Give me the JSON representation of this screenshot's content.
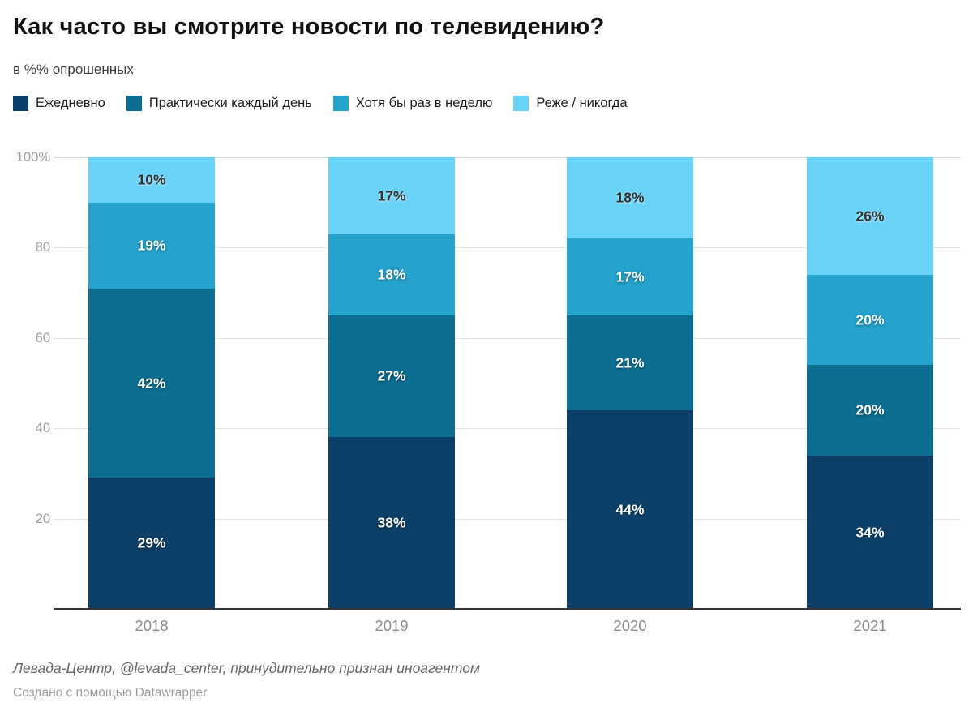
{
  "header": {
    "title": "Как часто вы смотрите новости по телевидению?",
    "subtitle": "в %% опрошенных"
  },
  "footer": {
    "source": "Левада-Центр, @levada_center, принудительно признан иноагентом",
    "attribution": "Создано с помощью Datawrapper"
  },
  "chart_data": {
    "type": "bar",
    "stacked": true,
    "orientation": "vertical",
    "title": "Как часто вы смотрите новости по телевидению?",
    "subtitle": "в %% опрошенных",
    "categories": [
      "2018",
      "2019",
      "2020",
      "2021"
    ],
    "series": [
      {
        "name": "Ежедневно",
        "color": "#0d4068",
        "label_color": "light",
        "values": [
          29,
          38,
          44,
          34
        ]
      },
      {
        "name": "Практически каждый день",
        "color": "#0c6e91",
        "label_color": "light",
        "values": [
          42,
          27,
          21,
          20
        ]
      },
      {
        "name": "Хотя бы раз в неделю",
        "color": "#25a3cd",
        "label_color": "light",
        "values": [
          19,
          18,
          17,
          20
        ]
      },
      {
        "name": "Реже / никогда",
        "color": "#69d2f7",
        "label_color": "dark",
        "values": [
          10,
          17,
          18,
          26
        ]
      }
    ],
    "value_suffix": "%",
    "ylim": [
      0,
      100
    ],
    "yticks": [
      {
        "value": 20,
        "label": "20"
      },
      {
        "value": 40,
        "label": "40"
      },
      {
        "value": 60,
        "label": "60"
      },
      {
        "value": 80,
        "label": "80"
      },
      {
        "value": 100,
        "label": "100%"
      }
    ],
    "grid": "horizontal",
    "legend_position": "top"
  }
}
